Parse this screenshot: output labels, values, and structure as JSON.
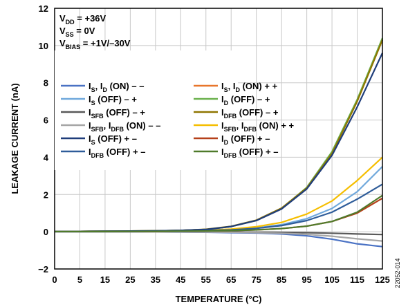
{
  "chart_data": {
    "type": "line",
    "xlabel": "TEMPERATURE (°C)",
    "ylabel": "LEAKAGE CURRENT (nA)",
    "xlim": [
      0,
      125
    ],
    "ylim": [
      -2,
      12
    ],
    "x_ticks": [
      0,
      5,
      15,
      25,
      35,
      45,
      55,
      65,
      75,
      85,
      95,
      105,
      115,
      125
    ],
    "y_ticks": [
      -2,
      0,
      2,
      4,
      6,
      8,
      10,
      12
    ],
    "x_tick_labels": [
      "0",
      "5",
      "15",
      "25",
      "35",
      "45",
      "55",
      "65",
      "75",
      "85",
      "95",
      "105",
      "115",
      "125"
    ],
    "y_tick_labels": [
      "−2",
      "0",
      "2",
      "4",
      "6",
      "8",
      "10",
      "12"
    ],
    "grid": true,
    "legend_placement": "upper-left",
    "conditions": [
      {
        "main": "V",
        "sub": "DD",
        "rest": " = +36V"
      },
      {
        "main": "V",
        "sub": "SS",
        "rest": " = 0V"
      },
      {
        "main": "V",
        "sub": "BIAS",
        "rest": " = +1V/–30V"
      }
    ],
    "x": [
      0,
      5,
      15,
      25,
      35,
      45,
      55,
      65,
      75,
      85,
      95,
      105,
      115,
      125
    ],
    "series": [
      {
        "name": "IS, ID (ON) – –",
        "color": "#4a72c4",
        "label": [
          {
            "t": "I"
          },
          {
            "t": "S",
            "sub": true
          },
          {
            "t": ", I"
          },
          {
            "t": "D",
            "sub": true
          },
          {
            "t": " (ON) – –"
          }
        ],
        "values": [
          0,
          0,
          0,
          0,
          -0.01,
          -0.02,
          -0.03,
          -0.05,
          -0.07,
          -0.12,
          -0.22,
          -0.4,
          -0.65,
          -0.8
        ]
      },
      {
        "name": "IS, ID (ON) + +",
        "color": "#e8762b",
        "label": [
          {
            "t": "I"
          },
          {
            "t": "S",
            "sub": true
          },
          {
            "t": ", I"
          },
          {
            "t": "D",
            "sub": true
          },
          {
            "t": " (ON) + +"
          }
        ],
        "values": [
          0.02,
          0.02,
          0.03,
          0.04,
          0.05,
          0.07,
          0.12,
          0.28,
          0.6,
          1.25,
          2.35,
          4.25,
          7.05,
          10.35
        ]
      },
      {
        "name": "IS (OFF) – +",
        "color": "#6fa8dc",
        "label": [
          {
            "t": "I"
          },
          {
            "t": "S",
            "sub": true
          },
          {
            "t": " (OFF) – +"
          }
        ],
        "values": [
          0.01,
          0.01,
          0.02,
          0.02,
          0.03,
          0.04,
          0.06,
          0.1,
          0.2,
          0.38,
          0.7,
          1.25,
          2.15,
          3.5
        ]
      },
      {
        "name": "ID (OFF) – +",
        "color": "#6ab04c",
        "label": [
          {
            "t": "I"
          },
          {
            "t": "D",
            "sub": true
          },
          {
            "t": " (OFF) – +"
          }
        ],
        "values": [
          0.02,
          0.02,
          0.03,
          0.04,
          0.05,
          0.07,
          0.12,
          0.28,
          0.6,
          1.25,
          2.38,
          4.3,
          7.1,
          10.4
        ]
      },
      {
        "name": "ISFB (OFF) – +",
        "color": "#595959",
        "label": [
          {
            "t": "I"
          },
          {
            "t": "SFB",
            "sub": true
          },
          {
            "t": " (OFF) – +"
          }
        ],
        "values": [
          0,
          0,
          0,
          0,
          0,
          -0.01,
          -0.01,
          -0.01,
          -0.02,
          -0.03,
          -0.05,
          -0.08,
          -0.12,
          -0.15
        ]
      },
      {
        "name": "IDFB (OFF) – +",
        "color": "#8f7500",
        "label": [
          {
            "t": "I"
          },
          {
            "t": "DFB",
            "sub": true
          },
          {
            "t": " (OFF) – +"
          }
        ],
        "values": [
          0.02,
          0.02,
          0.03,
          0.04,
          0.05,
          0.07,
          0.13,
          0.29,
          0.62,
          1.27,
          2.35,
          4.2,
          7.0,
          10.3
        ]
      },
      {
        "name": "ISFB, IDFB (ON) – –",
        "color": "#a6a6a6",
        "label": [
          {
            "t": "I"
          },
          {
            "t": "SFB",
            "sub": true
          },
          {
            "t": ", I"
          },
          {
            "t": "DFB",
            "sub": true
          },
          {
            "t": " (ON) – –"
          }
        ],
        "values": [
          0,
          0,
          0,
          0,
          -0.01,
          -0.01,
          -0.02,
          -0.03,
          -0.05,
          -0.08,
          -0.14,
          -0.24,
          -0.38,
          -0.5
        ]
      },
      {
        "name": "ISFB, IDFB (ON) + +",
        "color": "#f5be00",
        "label": [
          {
            "t": "I"
          },
          {
            "t": "SFB",
            "sub": true
          },
          {
            "t": ", I"
          },
          {
            "t": "DFB",
            "sub": true
          },
          {
            "t": " (ON) + +"
          }
        ],
        "values": [
          0.02,
          0.02,
          0.02,
          0.03,
          0.04,
          0.05,
          0.08,
          0.14,
          0.27,
          0.5,
          0.95,
          1.65,
          2.75,
          4.0
        ]
      },
      {
        "name": "IS (OFF) + –",
        "color": "#1f3d7a",
        "label": [
          {
            "t": "I"
          },
          {
            "t": "S",
            "sub": true
          },
          {
            "t": " (OFF) + –"
          }
        ],
        "values": [
          0.02,
          0.02,
          0.03,
          0.04,
          0.05,
          0.07,
          0.12,
          0.28,
          0.6,
          1.22,
          2.3,
          4.1,
          6.7,
          9.6
        ]
      },
      {
        "name": "ID (OFF) + –",
        "color": "#b5401a",
        "label": [
          {
            "t": "I"
          },
          {
            "t": "D",
            "sub": true
          },
          {
            "t": " (OFF) + –"
          }
        ],
        "values": [
          0.01,
          0.01,
          0.01,
          0.02,
          0.02,
          0.03,
          0.04,
          0.06,
          0.1,
          0.17,
          0.3,
          0.55,
          1.0,
          1.8
        ]
      },
      {
        "name": "IDFB (OFF) + – (blue)",
        "color": "#2e5c99",
        "label": [
          {
            "t": "I"
          },
          {
            "t": "DFB",
            "sub": true
          },
          {
            "t": " (OFF) + –"
          }
        ],
        "values": [
          0.01,
          0.01,
          0.02,
          0.02,
          0.03,
          0.04,
          0.06,
          0.1,
          0.18,
          0.33,
          0.6,
          1.05,
          1.75,
          2.55
        ]
      },
      {
        "name": "IDFB (OFF) + – (green)",
        "color": "#4f7a2a",
        "label": [
          {
            "t": "I"
          },
          {
            "t": "DFB",
            "sub": true
          },
          {
            "t": " (OFF) + –"
          }
        ],
        "values": [
          0.01,
          0.01,
          0.01,
          0.02,
          0.02,
          0.03,
          0.04,
          0.06,
          0.1,
          0.17,
          0.3,
          0.55,
          1.05,
          1.95
        ]
      }
    ]
  },
  "figure_code": "22052-014"
}
